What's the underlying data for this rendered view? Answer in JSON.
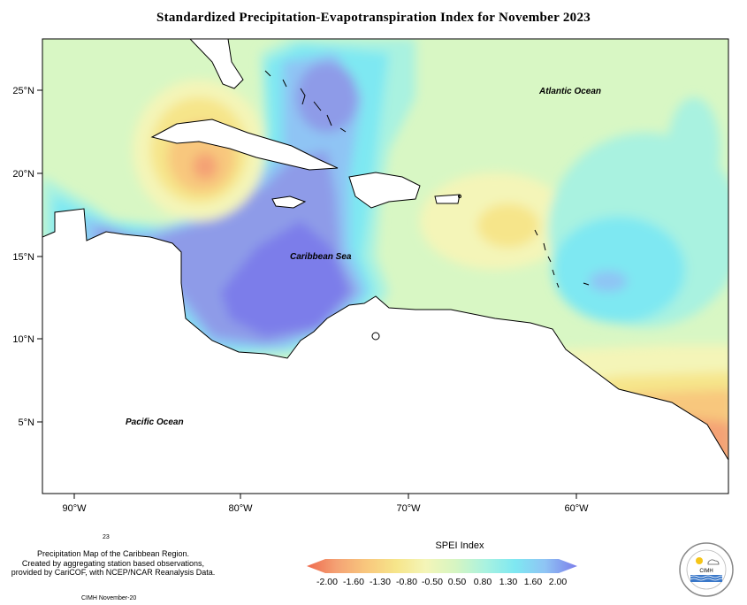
{
  "title": "Standardized Precipitation-Evapotranspiration Index for November 2023",
  "map": {
    "lat_labels": [
      "25°N",
      "20°N",
      "15°N",
      "10°N",
      "5°N"
    ],
    "lon_labels": [
      "90°W",
      "80°W",
      "70°W",
      "60°W"
    ],
    "places": {
      "atlantic": "Atlantic Ocean",
      "caribbean": "Caribbean Sea",
      "pacific": "Pacific Ocean"
    }
  },
  "legend": {
    "title": "SPEI Index",
    "ticks": [
      "-2.00",
      "-1.60",
      "-1.30",
      "-0.80",
      "-0.50",
      "0.50",
      "0.80",
      "1.30",
      "1.60",
      "2.00"
    ],
    "colors": [
      "#ef6a4e",
      "#f4a274",
      "#f8c77d",
      "#f6e58a",
      "#f4f5b8",
      "#d6f5c2",
      "#a9f2e0",
      "#7ee8f2",
      "#8fc4f4",
      "#8e9be8",
      "#7b7dea"
    ]
  },
  "footer": {
    "note_number": "23",
    "credit_lines": [
      "Precipitation Map of the Caribbean Region.",
      "Created by aggregating station based observations,",
      "provided by CariCOF, with NCEP/NCAR Reanalysis Data."
    ],
    "stamp": "CIMH November-20",
    "logo_text": "CIMH"
  }
}
